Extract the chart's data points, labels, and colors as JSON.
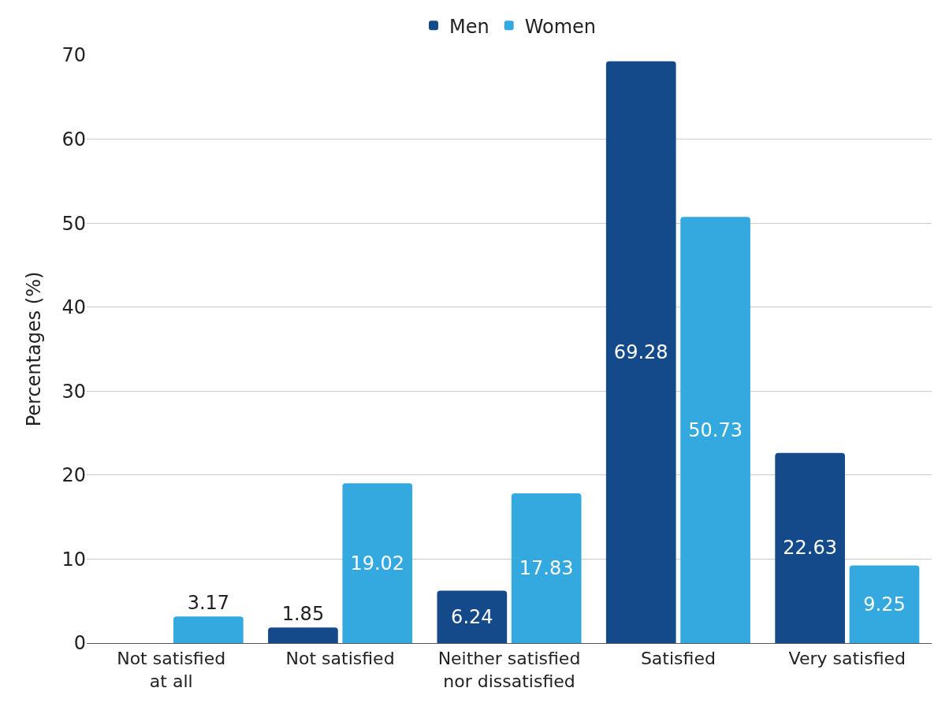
{
  "chart_data": {
    "type": "bar",
    "ylabel": "Percentages (%)",
    "categories": [
      "Not satisfied at all",
      "Not satisfied",
      "Neither satisfied nor dissatisfied",
      "Satisfied",
      "Very satisfied"
    ],
    "series": [
      {
        "name": "Men",
        "color": "#154a8a",
        "values": [
          null,
          1.85,
          6.24,
          69.28,
          22.63
        ]
      },
      {
        "name": "Women",
        "color": "#33a9e0",
        "values": [
          3.17,
          19.02,
          17.83,
          50.73,
          9.25
        ]
      }
    ],
    "ylim": [
      0,
      70
    ],
    "yticks": [
      0,
      10,
      20,
      30,
      40,
      50,
      60,
      70
    ],
    "grid": "y",
    "legend": "top",
    "data_labels": true
  }
}
